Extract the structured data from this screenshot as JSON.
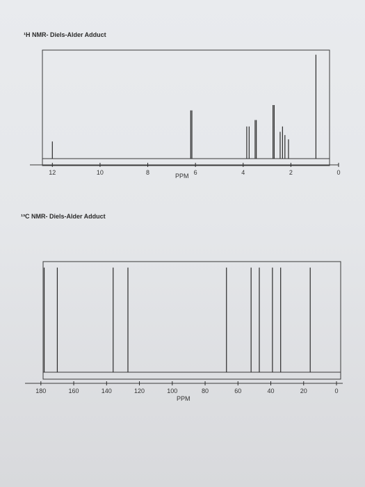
{
  "chart_data": [
    {
      "type": "line",
      "title": "¹H NMR- Diels-Alder Adduct",
      "xlabel": "PPM",
      "xlim": [
        13,
        0
      ],
      "reversed_x": true,
      "ticks": [
        "12",
        "10",
        "8",
        "6",
        "4",
        "2",
        "0"
      ],
      "peaks": [
        {
          "ppm": 12.0,
          "height": 0.16
        },
        {
          "ppm": 6.2,
          "height": 0.45
        },
        {
          "ppm": 6.15,
          "height": 0.45
        },
        {
          "ppm": 3.85,
          "height": 0.3
        },
        {
          "ppm": 3.75,
          "height": 0.3
        },
        {
          "ppm": 3.5,
          "height": 0.36
        },
        {
          "ppm": 3.45,
          "height": 0.36
        },
        {
          "ppm": 2.75,
          "height": 0.5
        },
        {
          "ppm": 2.7,
          "height": 0.5
        },
        {
          "ppm": 2.45,
          "height": 0.25
        },
        {
          "ppm": 2.35,
          "height": 0.3
        },
        {
          "ppm": 2.25,
          "height": 0.22
        },
        {
          "ppm": 2.1,
          "height": 0.18
        },
        {
          "ppm": 0.95,
          "height": 0.97
        }
      ]
    },
    {
      "type": "line",
      "title": "¹³C NMR- Diels-Alder Adduct",
      "xlabel": "PPM",
      "xlim": [
        185,
        0
      ],
      "reversed_x": true,
      "ticks": [
        "180",
        "160",
        "140",
        "120",
        "100",
        "80",
        "60",
        "40",
        "20",
        "0"
      ],
      "peaks": [
        {
          "ppm": 178,
          "height": 0.97
        },
        {
          "ppm": 170,
          "height": 0.97
        },
        {
          "ppm": 136,
          "height": 0.97
        },
        {
          "ppm": 127,
          "height": 0.97
        },
        {
          "ppm": 67,
          "height": 0.97
        },
        {
          "ppm": 52,
          "height": 0.97
        },
        {
          "ppm": 47,
          "height": 0.97
        },
        {
          "ppm": 39,
          "height": 0.97
        },
        {
          "ppm": 34,
          "height": 0.97
        },
        {
          "ppm": 16,
          "height": 0.97
        }
      ]
    }
  ]
}
